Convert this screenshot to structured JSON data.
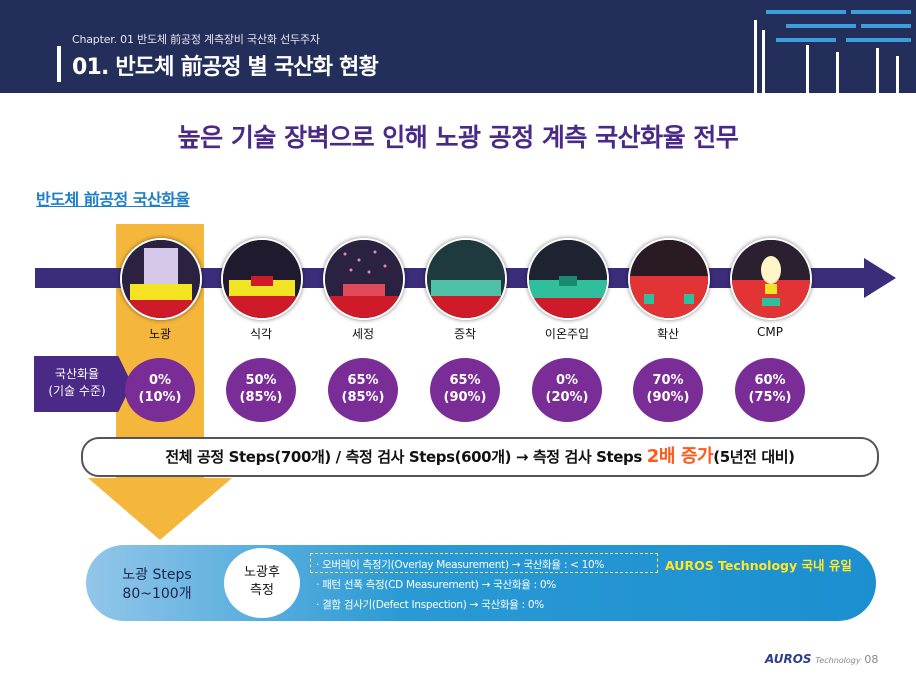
{
  "header": {
    "chapter": "Chapter. 01 반도체 前공정 계측장비 국산화 선두주자",
    "title": "01. 반도체 前공정 별 국산화 현황"
  },
  "headline": "높은 기술 장벽으로 인해 노광 공정 계측 국산화율 전무",
  "section_title": "반도체 前공정 국산화율",
  "rate_label": {
    "line1": "국산화율",
    "line2": "(기술 수준)"
  },
  "processes": [
    {
      "name": "노광",
      "rate": "0%",
      "tech": "(10%)"
    },
    {
      "name": "식각",
      "rate": "50%",
      "tech": "(85%)"
    },
    {
      "name": "세정",
      "rate": "65%",
      "tech": "(85%)"
    },
    {
      "name": "증착",
      "rate": "65%",
      "tech": "(90%)"
    },
    {
      "name": "이온주입",
      "rate": "0%",
      "tech": "(20%)"
    },
    {
      "name": "확산",
      "rate": "70%",
      "tech": "(90%)"
    },
    {
      "name": "CMP",
      "rate": "60%",
      "tech": "(75%)"
    }
  ],
  "steps_summary": {
    "prefix": "전체 공정 Steps(700개) / 측정 검사 Steps(600개) → 측정 검사 Steps ",
    "highlight": "2배 증가",
    "suffix": "(5년전 대비)"
  },
  "bottom": {
    "steps_line1": "노광 Steps",
    "steps_line2": "80~100개",
    "after_line1": "노광후",
    "after_line2": "측정",
    "items": [
      "· 오버레이 측정기(Overlay Measurement) → 국산화율 : < 10%",
      "· 패턴 선폭 측정(CD Measurement) → 국산화율 : 0%",
      "· 결함 검사기(Defect Inspection) → 국산화율 : 0%"
    ],
    "note": "AUROS Technology 국내 유일"
  },
  "footer": {
    "brand": "AUROS",
    "brand_sub": "Technology",
    "page": "08"
  },
  "colors": {
    "header_bg": "#232f5a",
    "accent_purple": "#4a2a86",
    "rate_circle": "#7b2d97",
    "highlight_orange": "#f5b63c",
    "band_blue": "#1b8fd0",
    "note_yellow": "#ffe72a"
  }
}
